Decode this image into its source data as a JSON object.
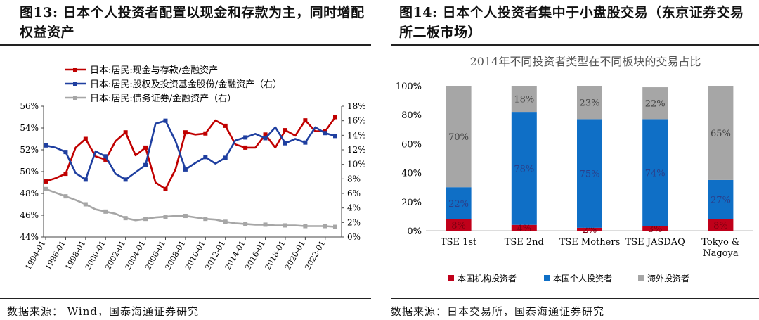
{
  "figures": {
    "left": {
      "label": "图13:",
      "title": "日本个人投资者配置以现金和存款为主，同时增配权益资产",
      "source": "数据来源： Wind，国泰海通证券研究"
    },
    "right": {
      "label": "图14:",
      "title": "日本个人投资者集中于小盘股交易（东京证券交易所二板市场）",
      "source": "数据来源：日本交易所，国泰海通证券研究"
    }
  },
  "chart_data": [
    {
      "type": "line",
      "title": "",
      "x": [
        "1994-01",
        "1995-01",
        "1996-01",
        "1997-01",
        "1998-01",
        "1999-01",
        "2000-01",
        "2001-01",
        "2002-01",
        "2003-01",
        "2004-01",
        "2005-01",
        "2006-01",
        "2007-01",
        "2008-01",
        "2009-01",
        "2010-01",
        "2011-01",
        "2012-01",
        "2013-01",
        "2014-01",
        "2015-01",
        "2016-01",
        "2017-01",
        "2018-01",
        "2019-01",
        "2020-01",
        "2021-01",
        "2022-01",
        "2022-07"
      ],
      "xticks": [
        "1994-01",
        "1996-01",
        "1998-01",
        "2000-01",
        "2002-01",
        "2004-01",
        "2006-01",
        "2008-01",
        "2010-01",
        "2012-01",
        "2014-01",
        "2016-01",
        "2018-01",
        "2020-01",
        "2022-01"
      ],
      "left_axis": {
        "ylim": [
          44,
          56
        ],
        "ticks": [
          "44%",
          "46%",
          "48%",
          "50%",
          "52%",
          "54%",
          "56%"
        ]
      },
      "right_axis": {
        "ylim": [
          0,
          18
        ],
        "ticks": [
          "0%",
          "2%",
          "4%",
          "6%",
          "8%",
          "10%",
          "12%",
          "14%",
          "16%",
          "18%"
        ]
      },
      "legend_position": "top-left",
      "series": [
        {
          "name": "日本:居民:现金与存款/金融资产",
          "axis": "left",
          "color": "#c00000",
          "values": [
            49.1,
            49.4,
            49.8,
            52.2,
            53.0,
            51.4,
            51.1,
            52.8,
            53.6,
            51.5,
            52.2,
            49.0,
            48.4,
            50.2,
            53.6,
            53.4,
            53.5,
            54.7,
            54.2,
            52.5,
            52.2,
            52.2,
            53.4,
            52.2,
            53.8,
            53.3,
            54.7,
            53.7,
            53.7,
            55.0
          ]
        },
        {
          "name": "日本:居民:股权及投资基金股份/金融资产（右）",
          "axis": "right",
          "color": "#1f3fa0",
          "values": [
            12.6,
            12.3,
            11.7,
            8.8,
            7.9,
            11.8,
            11.1,
            8.7,
            7.9,
            8.9,
            9.9,
            15.6,
            16.0,
            13.2,
            9.3,
            10.2,
            11.0,
            10.1,
            10.9,
            13.3,
            13.7,
            14.2,
            13.6,
            15.1,
            12.9,
            13.5,
            13.0,
            15.1,
            14.3,
            13.9
          ]
        },
        {
          "name": "日本:居民:债务证券/金融资产（右）",
          "axis": "right",
          "color": "#a6a6a6",
          "values": [
            6.6,
            6.1,
            5.6,
            5.1,
            4.5,
            3.8,
            3.5,
            3.2,
            2.6,
            2.3,
            2.5,
            2.7,
            2.8,
            2.9,
            2.9,
            2.7,
            2.5,
            2.4,
            2.1,
            1.9,
            1.8,
            1.7,
            1.7,
            1.6,
            1.6,
            1.6,
            1.5,
            1.5,
            1.5,
            1.4
          ]
        }
      ]
    },
    {
      "type": "bar",
      "stacked": true,
      "title": "2014年不同投资者类型在不同板块的交易占比",
      "categories": [
        "TSE 1st",
        "TSE 2nd",
        "TSE Mothers",
        "TSE JASDAQ",
        "Tokyo & Nagoya"
      ],
      "ylim": [
        0,
        100
      ],
      "yticks": [
        "0%",
        "20%",
        "40%",
        "60%",
        "80%",
        "100%"
      ],
      "legend_position": "bottom",
      "series": [
        {
          "name": "本国机构投资者",
          "color": "#c0001a",
          "values": [
            8,
            4,
            2,
            3,
            8
          ],
          "labels": [
            "8%",
            "4%",
            "2%",
            "3%",
            "8%"
          ]
        },
        {
          "name": "本国个人投资者",
          "color": "#0f6fc6",
          "values": [
            22,
            78,
            75,
            74,
            27
          ],
          "labels": [
            "22%",
            "78%",
            "75%",
            "74%",
            "27%"
          ]
        },
        {
          "name": "海外投资者",
          "color": "#a6a6a6",
          "values": [
            70,
            18,
            23,
            22,
            65
          ],
          "labels": [
            "70%",
            "18%",
            "23%",
            "22%",
            "65%"
          ]
        }
      ]
    }
  ]
}
